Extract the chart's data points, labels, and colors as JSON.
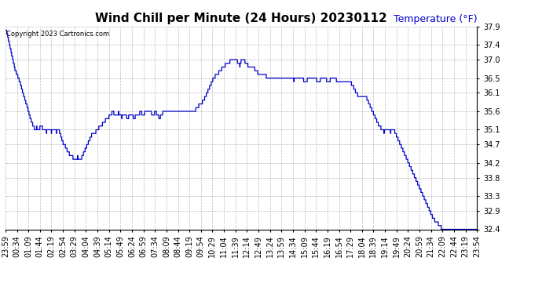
{
  "title": "Wind Chill per Minute (24 Hours) 20230112",
  "ylabel": "Temperature (°F)",
  "copyright_text": "Copyright 2023 Cartronics.com",
  "line_color": "#0000cc",
  "background_color": "#ffffff",
  "grid_color": "#aaaaaa",
  "ylim_min": 32.4,
  "ylim_max": 37.9,
  "yticks": [
    32.4,
    32.9,
    33.3,
    33.8,
    34.2,
    34.7,
    35.1,
    35.6,
    36.1,
    36.5,
    37.0,
    37.4,
    37.9
  ],
  "xtick_labels": [
    "23:59",
    "00:34",
    "01:09",
    "01:44",
    "02:19",
    "02:54",
    "03:29",
    "04:04",
    "04:39",
    "05:14",
    "05:49",
    "06:24",
    "06:59",
    "07:34",
    "08:09",
    "08:44",
    "09:19",
    "09:54",
    "10:29",
    "11:04",
    "11:39",
    "12:14",
    "12:49",
    "13:24",
    "13:59",
    "14:34",
    "15:09",
    "15:44",
    "16:19",
    "16:54",
    "17:29",
    "18:04",
    "18:39",
    "19:14",
    "19:49",
    "20:24",
    "20:59",
    "21:34",
    "22:09",
    "22:44",
    "23:19",
    "23:54"
  ],
  "n_xticks": 42,
  "title_fontsize": 11,
  "label_fontsize": 9,
  "tick_fontsize": 7
}
